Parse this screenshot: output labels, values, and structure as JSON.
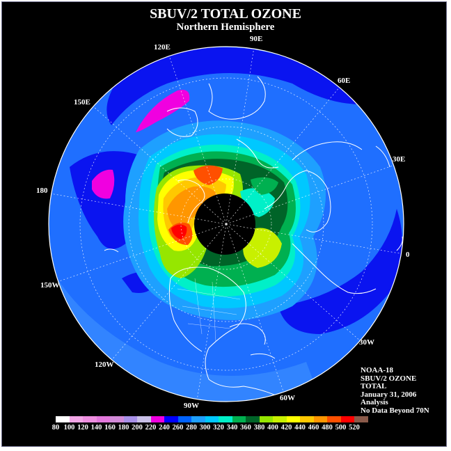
{
  "title": "SBUV/2 TOTAL OZONE",
  "subtitle": "Northern Hemisphere",
  "longitude_labels": [
    "90E",
    "60E",
    "30E",
    "0",
    "30W",
    "60W",
    "90W",
    "120W",
    "150W",
    "180",
    "150E",
    "120E"
  ],
  "info_lines": [
    "NOAA-18",
    "SBUV/2 OZONE",
    "TOTAL",
    "January 31, 2006",
    "Analysis",
    "No Data Beyond 70N"
  ],
  "colorbar": {
    "ticks": [
      "80",
      "100",
      "120",
      "140",
      "160",
      "180",
      "200",
      "220",
      "240",
      "260",
      "280",
      "300",
      "320",
      "340",
      "360",
      "380",
      "400",
      "420",
      "440",
      "460",
      "480",
      "500",
      "520"
    ],
    "colors": [
      "#ffffff",
      "#f2a6e6",
      "#ee8ee0",
      "#e378dc",
      "#d28ad8",
      "#a890e8",
      "#c9c0e8",
      "#f000e0",
      "#0000ff",
      "#0062ff",
      "#1ea0ff",
      "#00c8ff",
      "#00f0c8",
      "#00b050",
      "#006428",
      "#96e600",
      "#c8f000",
      "#ffff00",
      "#ffc800",
      "#ff9600",
      "#ff5000",
      "#ff0000",
      "#8a5a4a"
    ]
  },
  "colors": {
    "background": "#000000",
    "ocean_base": "#1f6fff",
    "deep_blue": "#0a14f0",
    "no_data": "#000000"
  }
}
